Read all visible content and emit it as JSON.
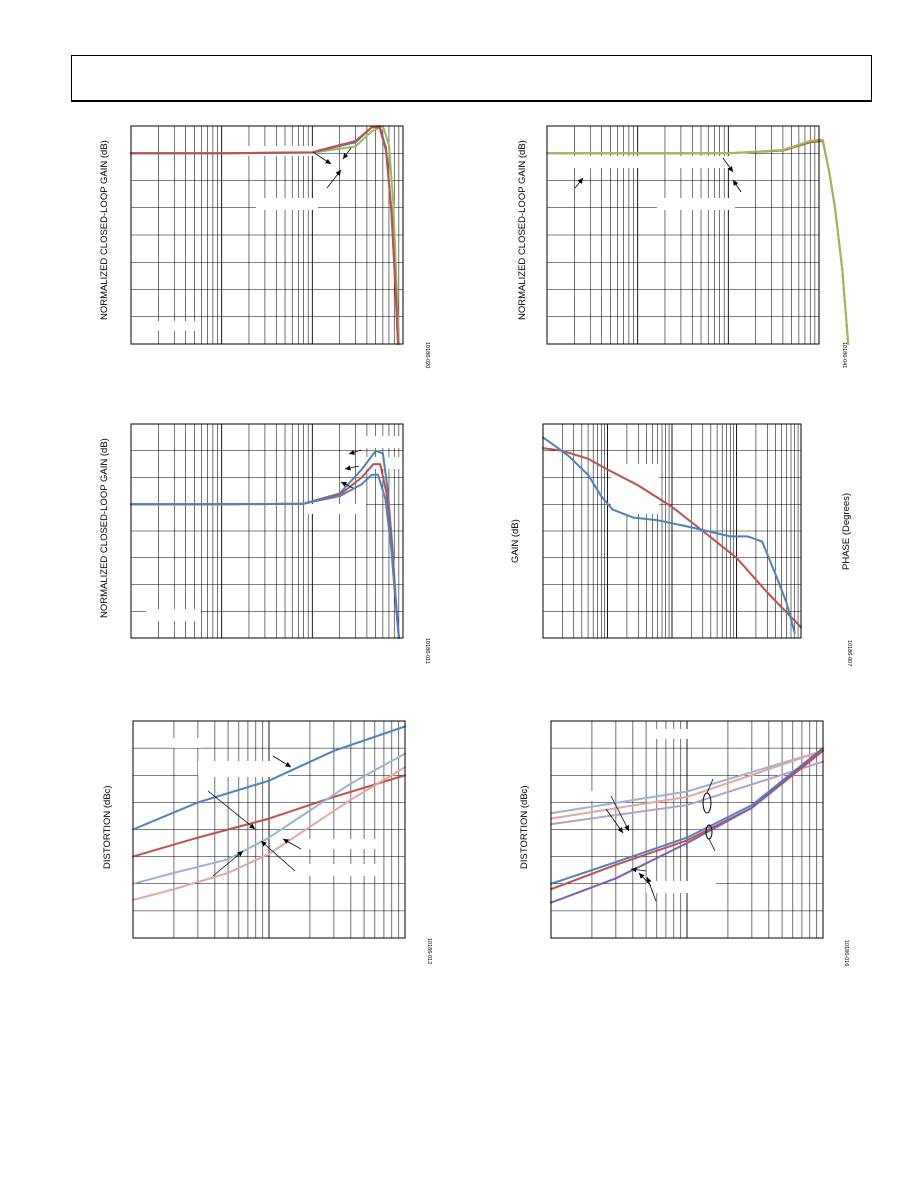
{
  "page": {
    "header": ""
  },
  "colors": {
    "blue": "#4f81bd",
    "red": "#c0504d",
    "green": "#9bbb59",
    "ltblue": "#9bb3d4",
    "pink": "#e6a6a0",
    "purple": "#7e5fb0",
    "lavender": "#b3a2c7",
    "grid": "#000000"
  },
  "chart_data": [
    {
      "id": "c1",
      "type": "line",
      "title": "",
      "xlabel": "",
      "ylabel": "NORMALIZED CLOSED-LOOP GAIN (dB)",
      "figure_code": "10186-020",
      "xscale": "log",
      "xdecades": 3,
      "ylim": [
        -7,
        1
      ],
      "grid": true,
      "series": [
        {
          "color": "green",
          "x": [
            1,
            10,
            100,
            300,
            450,
            600,
            700,
            780,
            850,
            900
          ],
          "y": [
            0,
            0,
            0.02,
            0.25,
            0.8,
            1.0,
            0.3,
            -1.8,
            -4.8,
            -7
          ]
        },
        {
          "color": "blue",
          "x": [
            1,
            10,
            100,
            300,
            450,
            550,
            650,
            740,
            830,
            880
          ],
          "y": [
            0,
            0,
            0.03,
            0.4,
            0.95,
            1.0,
            0.2,
            -2.0,
            -5.0,
            -7
          ]
        },
        {
          "color": "red",
          "x": [
            1,
            10,
            100,
            300,
            450,
            550,
            650,
            750,
            830,
            880
          ],
          "y": [
            0,
            0,
            0.04,
            0.45,
            0.95,
            0.95,
            0.1,
            -2.2,
            -5.2,
            -7
          ]
        }
      ]
    },
    {
      "id": "c2",
      "type": "line",
      "title": "",
      "xlabel": "",
      "ylabel": "NORMALIZED CLOSED-LOOP GAIN (dB)",
      "figure_code": "10186-041",
      "xscale": "log",
      "xdecades": 3,
      "ylim": [
        -7,
        1
      ],
      "grid": true,
      "series": [
        {
          "color": "red",
          "x": [
            1,
            10,
            100,
            400,
            800,
            1100,
            1300,
            1500,
            1800,
            2100
          ],
          "y": [
            0,
            0,
            0,
            0.1,
            0.4,
            0.45,
            -0.7,
            -2.0,
            -4.2,
            -7
          ]
        },
        {
          "color": "green",
          "x": [
            1,
            10,
            100,
            400,
            800,
            1100,
            1300,
            1500,
            1800,
            2100
          ],
          "y": [
            0,
            0,
            0,
            0.12,
            0.45,
            0.5,
            -0.7,
            -2.0,
            -4.2,
            -7
          ]
        }
      ]
    },
    {
      "id": "c3",
      "type": "line",
      "title": "",
      "xlabel": "",
      "ylabel": "NORMALIZED CLOSED-LOOP GAIN (dB)",
      "figure_code": "10186-011",
      "xscale": "log",
      "xdecades": 3,
      "ylim": [
        -5,
        3
      ],
      "grid": true,
      "series": [
        {
          "color": "blue",
          "x": [
            1,
            10,
            80,
            200,
            350,
            500,
            600,
            680,
            760,
            830,
            900
          ],
          "y": [
            0,
            0,
            0.02,
            0.4,
            1.3,
            2.0,
            1.9,
            0.5,
            -1.5,
            -3.5,
            -5
          ]
        },
        {
          "color": "red",
          "x": [
            1,
            10,
            80,
            200,
            350,
            470,
            560,
            660,
            750,
            830,
            900
          ],
          "y": [
            0,
            0,
            0.02,
            0.35,
            1.0,
            1.5,
            1.5,
            0.4,
            -1.5,
            -3.6,
            -5
          ]
        },
        {
          "color": "blue",
          "x": [
            1,
            10,
            80,
            200,
            350,
            450,
            530,
            640,
            740,
            830,
            900
          ],
          "y": [
            0,
            0,
            0.02,
            0.3,
            0.75,
            1.1,
            1.1,
            0.2,
            -1.6,
            -3.7,
            -5
          ]
        }
      ]
    },
    {
      "id": "c4",
      "type": "line",
      "title": "",
      "xlabel": "",
      "ylabel": "GAIN (dB)",
      "y2label": "PHASE (Degrees)",
      "figure_code": "10186-007",
      "xscale": "log",
      "xdecades": 4,
      "ylim": [
        0,
        8
      ],
      "grid": true,
      "series": [
        {
          "color": "red",
          "x": [
            1,
            2,
            5,
            10,
            30,
            100,
            300,
            1000,
            3000,
            10000
          ],
          "y": [
            7.1,
            7.0,
            6.7,
            6.3,
            5.7,
            4.9,
            4.0,
            3.0,
            1.7,
            0.4
          ]
        },
        {
          "color": "blue",
          "x": [
            1,
            1.5,
            2.5,
            5,
            8,
            12,
            25,
            60,
            150,
            350,
            800,
            1500,
            2500,
            4000,
            6000,
            8000
          ],
          "y": [
            7.5,
            7.2,
            6.8,
            6.1,
            5.3,
            4.8,
            4.5,
            4.4,
            4.2,
            4.0,
            3.8,
            3.8,
            3.6,
            2.4,
            1.3,
            0.2
          ]
        }
      ]
    },
    {
      "id": "c5",
      "type": "line",
      "title": "",
      "xlabel": "",
      "ylabel": "DISTORTION (dBc)",
      "figure_code": "10186-012",
      "xscale": "log",
      "xdecades": 2,
      "ylim": [
        -9,
        -1
      ],
      "grid": true,
      "series": [
        {
          "color": "blue",
          "x": [
            1,
            3,
            10,
            30,
            100
          ],
          "y": [
            -5.0,
            -4.0,
            -3.2,
            -2.1,
            -1.2
          ]
        },
        {
          "color": "red",
          "x": [
            1,
            3,
            10,
            30,
            100
          ],
          "y": [
            -6.0,
            -5.3,
            -4.6,
            -3.8,
            -3.0
          ]
        },
        {
          "color": "ltblue",
          "x": [
            1,
            2,
            5,
            10,
            20,
            40,
            100
          ],
          "y": [
            -7.0,
            -6.6,
            -6.1,
            -5.3,
            -4.3,
            -3.3,
            -2.2
          ]
        },
        {
          "color": "pink",
          "x": [
            1,
            2,
            5,
            10,
            20,
            40,
            100
          ],
          "y": [
            -7.6,
            -7.2,
            -6.6,
            -5.9,
            -4.9,
            -3.9,
            -2.7
          ]
        }
      ]
    },
    {
      "id": "c6",
      "type": "line",
      "title": "",
      "xlabel": "",
      "ylabel": "DISTORTION (dBc)",
      "figure_code": "10186-016",
      "xscale": "log",
      "xdecades": 2,
      "ylim": [
        -9,
        -1
      ],
      "grid": true,
      "series": [
        {
          "color": "ltblue",
          "x": [
            1,
            10,
            100
          ],
          "y": [
            -4.4,
            -3.6,
            -2.1
          ]
        },
        {
          "color": "pink",
          "x": [
            1,
            10,
            100
          ],
          "y": [
            -4.6,
            -3.8,
            -2.1
          ]
        },
        {
          "color": "lavender",
          "x": [
            1,
            10,
            100
          ],
          "y": [
            -4.8,
            -4.1,
            -2.5
          ]
        },
        {
          "color": "blue",
          "x": [
            1,
            3,
            10,
            30,
            100
          ],
          "y": [
            -7.0,
            -6.2,
            -5.3,
            -4.1,
            -2.0
          ]
        },
        {
          "color": "red",
          "x": [
            1,
            3,
            10,
            30,
            100
          ],
          "y": [
            -7.2,
            -6.3,
            -5.4,
            -4.2,
            -2.1
          ]
        },
        {
          "color": "purple",
          "x": [
            1,
            3,
            10,
            30,
            100
          ],
          "y": [
            -7.7,
            -6.8,
            -5.5,
            -4.2,
            -2.0
          ]
        }
      ]
    }
  ]
}
